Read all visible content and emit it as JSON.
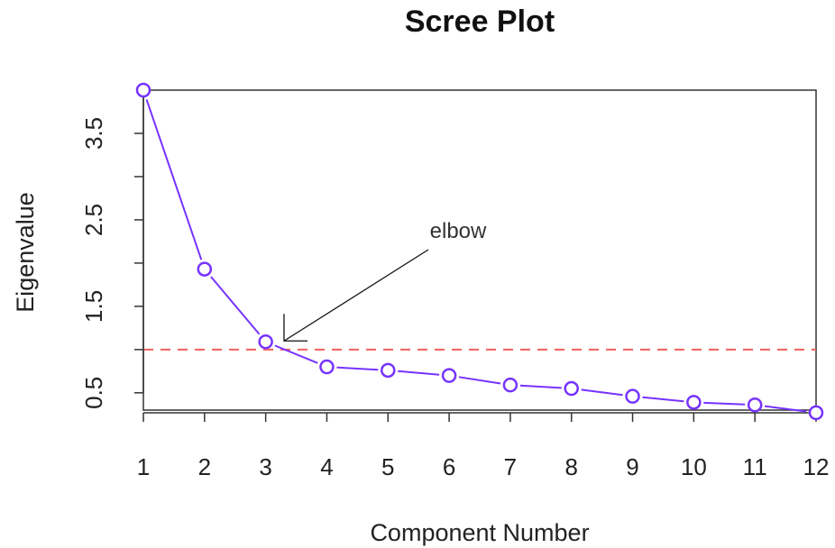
{
  "chart_data": {
    "type": "line",
    "title": "Scree Plot",
    "xlabel": "Component Number",
    "ylabel": "Eigenvalue",
    "xlim": [
      1,
      12
    ],
    "ylim": [
      0.3,
      4.0
    ],
    "x_ticks": [
      1,
      2,
      3,
      4,
      5,
      6,
      7,
      8,
      9,
      10,
      11,
      12
    ],
    "y_ticks": [
      0.5,
      1.0,
      1.5,
      2.0,
      2.5,
      3.0,
      3.5
    ],
    "y_tick_labels": [
      "0.5",
      "1.5",
      "2.5",
      "3.5"
    ],
    "grid": false,
    "series": [
      {
        "x": [
          1,
          2,
          3,
          4,
          5,
          6,
          7,
          8,
          9,
          10,
          11,
          12
        ],
        "values": [
          4.0,
          1.93,
          1.09,
          0.8,
          0.76,
          0.7,
          0.59,
          0.55,
          0.46,
          0.39,
          0.36,
          0.27
        ],
        "color": "#7733ff",
        "marker": "open-circle"
      }
    ],
    "reference_line": {
      "y": 1.0,
      "color": "#f25f5c",
      "style": "dashed"
    },
    "annotation": {
      "text": "elbow",
      "points_to": {
        "x": 3.3,
        "y": 1.1
      }
    }
  }
}
